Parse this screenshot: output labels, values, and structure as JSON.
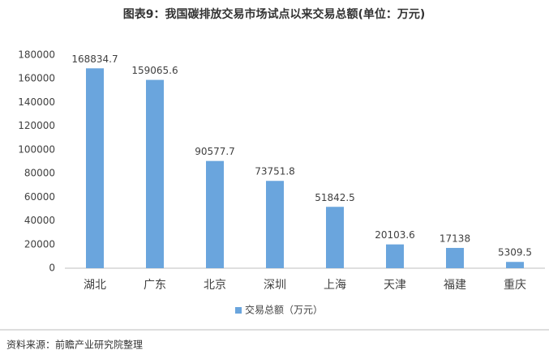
{
  "chart_data": {
    "type": "bar",
    "title": "图表9：我国碳排放交易市场试点以来交易总额(单位：万元)",
    "categories": [
      "湖北",
      "广东",
      "北京",
      "深圳",
      "上海",
      "天津",
      "福建",
      "重庆"
    ],
    "series": [
      {
        "name": "交易总额（万元）",
        "color": "#6aa5dd",
        "values": [
          168834.7,
          159065.6,
          90577.7,
          73751.8,
          51842.5,
          20103.6,
          17138,
          5309.5
        ]
      }
    ],
    "ylim": [
      0,
      180000
    ],
    "yticks": [
      0,
      20000,
      40000,
      60000,
      80000,
      100000,
      120000,
      140000,
      160000,
      180000
    ],
    "legend": "bottom",
    "source": "资料来源：前瞻产业研究院整理"
  }
}
